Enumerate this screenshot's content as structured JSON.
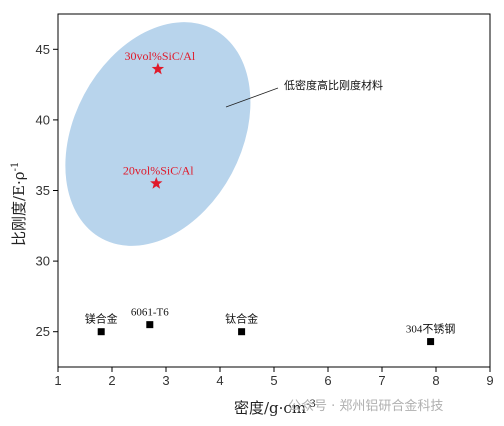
{
  "chart_data": {
    "type": "scatter",
    "xlabel": "密度/g·cm",
    "xlabel_sup": "-3",
    "ylabel": "比刚度/E·ρ",
    "ylabel_sup": "-1",
    "xlim": [
      1,
      9
    ],
    "ylim": [
      22.5,
      47.5
    ],
    "xticks": [
      1,
      2,
      3,
      4,
      5,
      6,
      7,
      8,
      9
    ],
    "yticks": [
      25,
      30,
      35,
      40,
      45
    ],
    "materials": [
      {
        "label": "镁合金",
        "x": 1.8,
        "y": 25.0
      },
      {
        "label": "6061-T6",
        "x": 2.7,
        "y": 25.5
      },
      {
        "label": "钛合金",
        "x": 4.4,
        "y": 25.0
      },
      {
        "label": "304不锈钢",
        "x": 7.9,
        "y": 24.3
      }
    ],
    "composites": [
      {
        "label": "30vol%SiC/Al",
        "x": 2.85,
        "y": 43.6
      },
      {
        "label": "20vol%SiC/Al",
        "x": 2.82,
        "y": 35.5
      }
    ],
    "region": {
      "label": "低密度高比刚度材料",
      "center_x": 2.85,
      "center_y": 39.0,
      "radius_x": 1.55,
      "radius_y": 8.4,
      "color": "#b8d4ec"
    },
    "marker_color": "#000000",
    "star_color": "#e0192a"
  },
  "watermark": "公众号 · 郑州铝研合金科技"
}
